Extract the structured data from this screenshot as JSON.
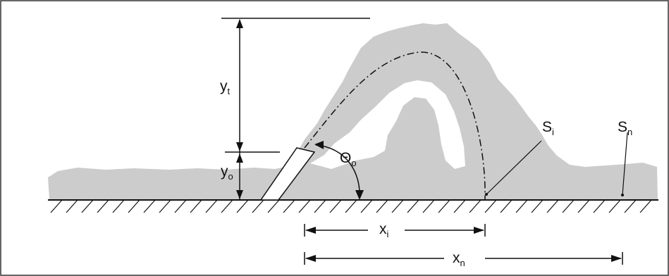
{
  "colors": {
    "plume": "#cccccc",
    "ink": "#111111",
    "background": "#ffffff"
  },
  "labels": {
    "y_t": {
      "main": "y",
      "sub": "t"
    },
    "y_o": {
      "main": "y",
      "sub": "o"
    },
    "theta_o": {
      "main": "Θ",
      "sub": "o"
    },
    "s_i": {
      "main": "S",
      "sub": "i"
    },
    "s_n": {
      "main": "S",
      "sub": "n"
    },
    "x_i": {
      "main": "x",
      "sub": "i"
    },
    "x_n": {
      "main": "x",
      "sub": "n"
    }
  }
}
